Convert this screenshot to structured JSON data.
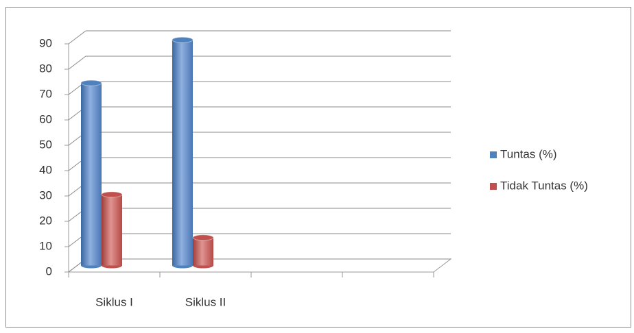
{
  "chart_data": {
    "type": "bar3d",
    "categories": [
      "Siklus I",
      "Siklus II",
      null,
      null
    ],
    "series": [
      {
        "name": "Tuntas (%)",
        "color": "#4f81bd",
        "values": [
          72,
          89,
          null,
          null
        ]
      },
      {
        "name": "Tidak Tuntas (%)",
        "color": "#c0504d",
        "values": [
          28,
          11,
          null,
          null
        ]
      }
    ],
    "ylim": [
      0,
      90
    ],
    "yticks": [
      0,
      10,
      20,
      30,
      40,
      50,
      60,
      70,
      80,
      90
    ],
    "grid": true,
    "legend": "right"
  }
}
